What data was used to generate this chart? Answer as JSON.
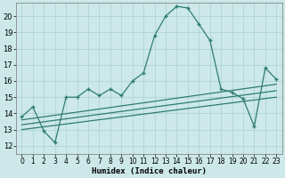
{
  "xlabel": "Humidex (Indice chaleur)",
  "background_color": "#cce8e8",
  "grid_color": "#b0d4d4",
  "line_color": "#2e7d6e",
  "xlim": [
    -0.5,
    23.5
  ],
  "ylim": [
    11.5,
    20.8
  ],
  "xticks": [
    0,
    1,
    2,
    3,
    4,
    5,
    6,
    7,
    8,
    9,
    10,
    11,
    12,
    13,
    14,
    15,
    16,
    17,
    18,
    19,
    20,
    21,
    22,
    23
  ],
  "yticks": [
    12,
    13,
    14,
    15,
    16,
    17,
    18,
    19,
    20
  ],
  "main_x": [
    0,
    1,
    2,
    3,
    4,
    5,
    6,
    7,
    8,
    9,
    10,
    11,
    12,
    13,
    14,
    15,
    16,
    17,
    18,
    19,
    20,
    21,
    22,
    23
  ],
  "main_y": [
    13.8,
    14.4,
    12.9,
    12.2,
    15.0,
    15.0,
    15.5,
    15.1,
    15.5,
    15.1,
    16.0,
    16.5,
    18.8,
    20.0,
    20.6,
    20.5,
    19.5,
    18.5,
    15.5,
    15.3,
    14.9,
    13.2,
    16.8,
    16.1
  ],
  "line1_x": [
    0,
    23
  ],
  "line1_y": [
    13.6,
    15.8
  ],
  "line2_x": [
    0,
    23
  ],
  "line2_y": [
    13.3,
    15.4
  ],
  "line3_x": [
    0,
    23
  ],
  "line3_y": [
    13.0,
    15.0
  ]
}
